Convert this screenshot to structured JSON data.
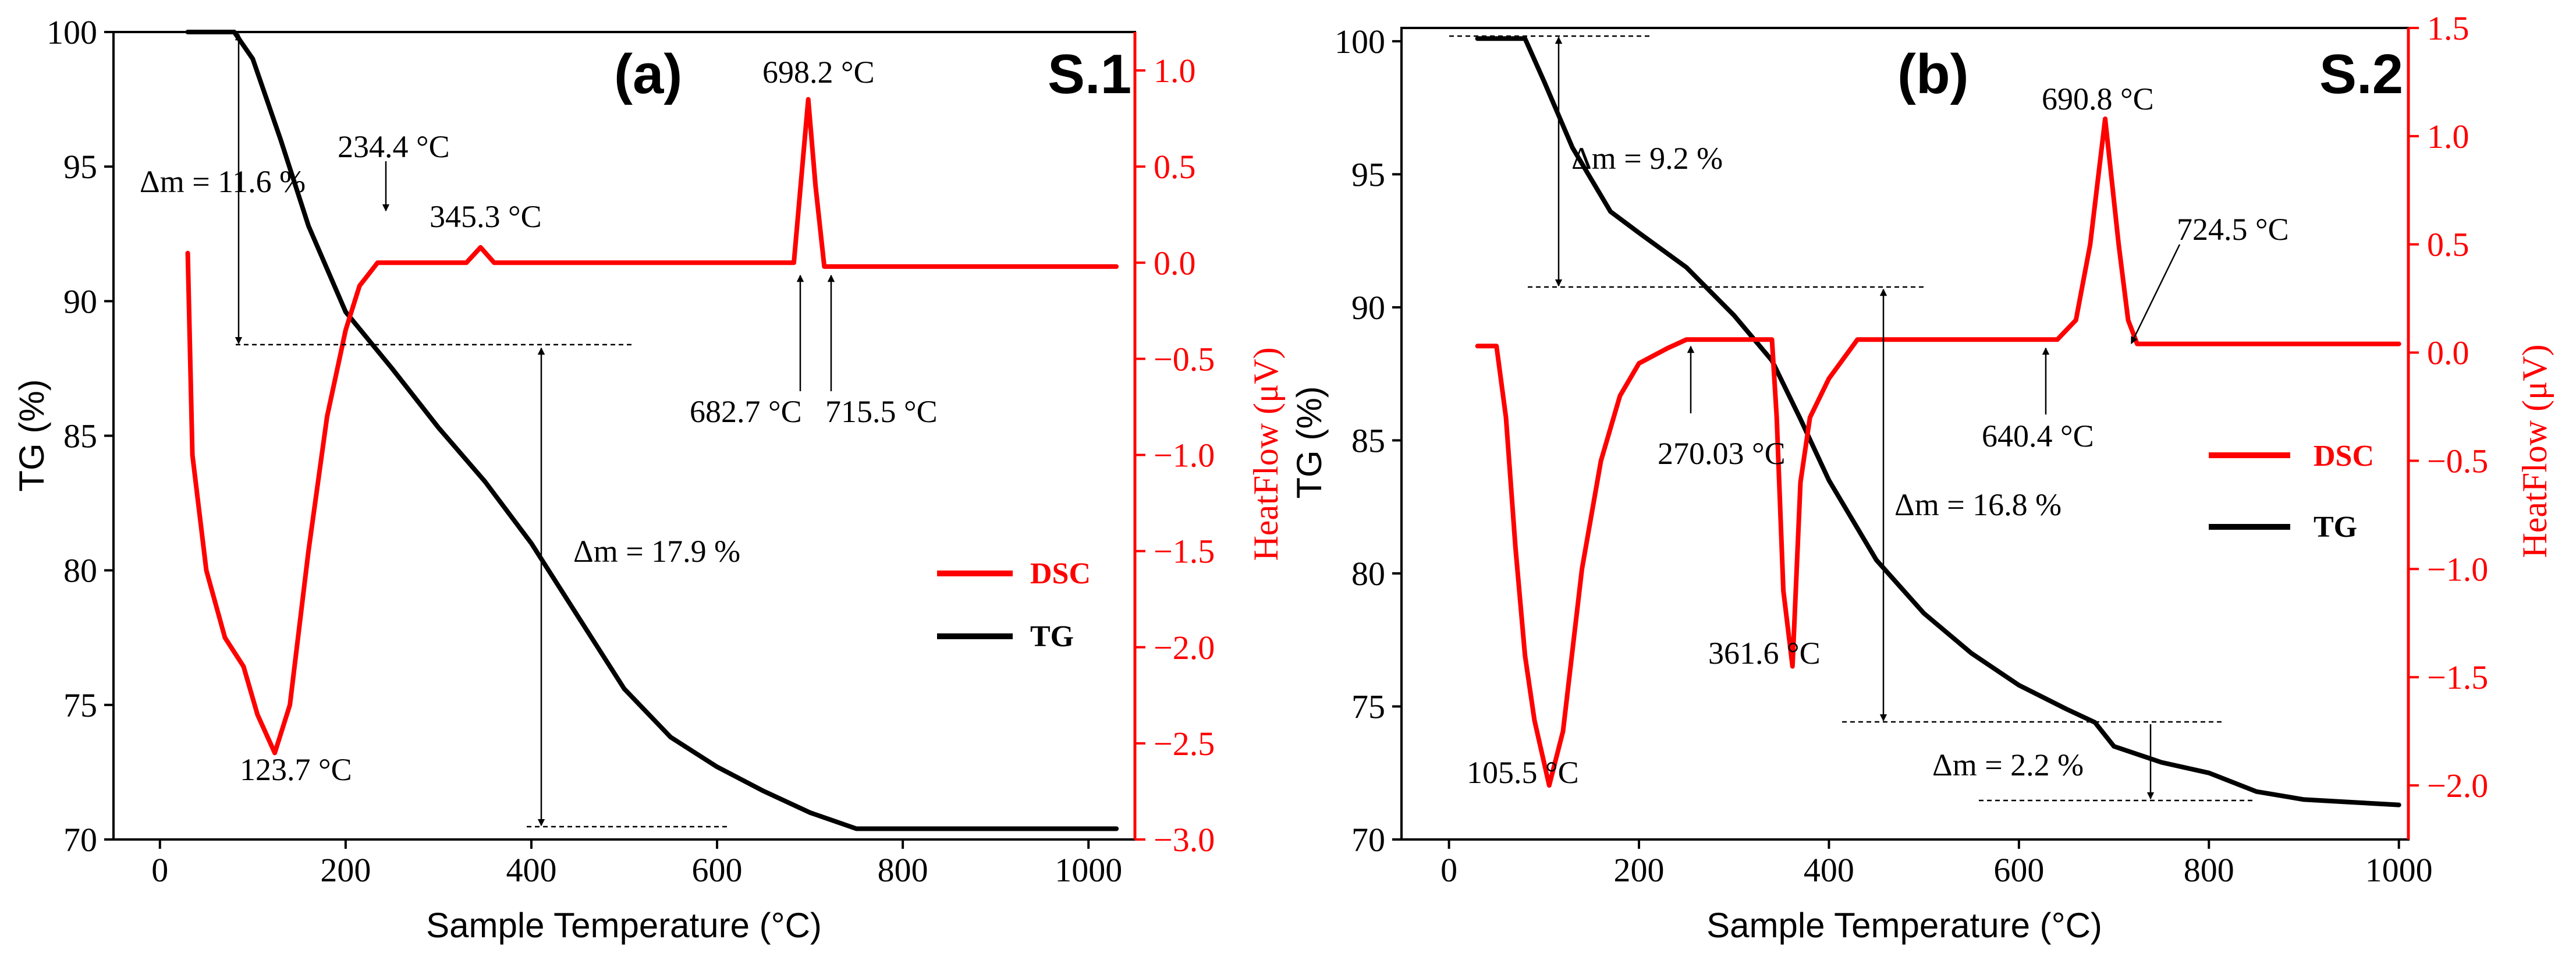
{
  "chart_data": [
    {
      "type": "line",
      "panel_label": "(a)",
      "sample_label": "S.1",
      "xlabel": "Sample Temperature (°C)",
      "ylabel": "TG  (%)",
      "y2label": "HeatFlow (μV)",
      "xlim": [
        -50,
        1050
      ],
      "ylim": [
        70,
        100
      ],
      "y2lim": [
        -3.0,
        1.2
      ],
      "xticks": [
        0,
        200,
        400,
        600,
        800,
        1000
      ],
      "yticks": [
        70,
        75,
        80,
        85,
        90,
        95,
        100
      ],
      "y2ticks": [
        -3.0,
        -2.5,
        -2.0,
        -1.5,
        -1.0,
        -0.5,
        0.0,
        0.5,
        1.0
      ],
      "xtick_labels": [
        "0",
        "200",
        "400",
        "600",
        "800",
        "1000"
      ],
      "ytick_labels": [
        "70",
        "75",
        "80",
        "85",
        "90",
        "95",
        "100"
      ],
      "y2tick_labels": [
        "−3.0",
        "−2.5",
        "−2.0",
        "−1.5",
        "−1.0",
        "−0.5",
        "0.0",
        "0.5",
        "1.0"
      ],
      "legend": [
        {
          "name": "DSC",
          "color": "#ff0000"
        },
        {
          "name": "TG",
          "color": "#000000"
        }
      ],
      "series": [
        {
          "name": "TG",
          "axis": "left",
          "color": "#000000",
          "x": [
            30,
            80,
            100,
            130,
            160,
            200,
            250,
            300,
            350,
            400,
            450,
            500,
            550,
            600,
            650,
            700,
            750,
            800,
            1030
          ],
          "y": [
            100,
            100,
            99,
            96,
            92.8,
            89.6,
            87.5,
            85.3,
            83.3,
            81.0,
            78.3,
            75.6,
            73.8,
            72.7,
            71.8,
            71.0,
            70.4,
            70.4,
            70.4
          ]
        },
        {
          "name": "DSC",
          "axis": "right",
          "color": "#ff0000",
          "x": [
            30,
            35,
            50,
            70,
            90,
            105,
            123.7,
            140,
            160,
            180,
            200,
            215,
            234.4,
            260,
            300,
            330,
            345.3,
            360,
            400,
            500,
            600,
            682.7,
            690,
            698.2,
            706,
            715.5,
            720,
            800,
            1030
          ],
          "y": [
            0.05,
            -1.0,
            -1.6,
            -1.95,
            -2.1,
            -2.35,
            -2.55,
            -2.3,
            -1.5,
            -0.8,
            -0.35,
            -0.12,
            0.0,
            0.0,
            0.0,
            0.0,
            0.08,
            0.0,
            0.0,
            0.0,
            0.0,
            0.0,
            0.4,
            0.85,
            0.4,
            -0.02,
            -0.02,
            -0.02,
            -0.02
          ]
        }
      ],
      "annotations": [
        {
          "text": "Δm = 11.6 %"
        },
        {
          "text": "234.4 °C"
        },
        {
          "text": "345.3 °C"
        },
        {
          "text": "698.2 °C"
        },
        {
          "text": "682.7 °C"
        },
        {
          "text": "715.5 °C"
        },
        {
          "text": "Δm = 17.9 %"
        },
        {
          "text": "123.7 °C"
        }
      ]
    },
    {
      "type": "line",
      "panel_label": "(b)",
      "sample_label": "S.2",
      "xlabel": "Sample Temperature (°C)",
      "ylabel": "TG  (%)",
      "y2label": "HeatFlow (μV)",
      "xlim": [
        -50,
        1010
      ],
      "ylim": [
        70,
        100.5
      ],
      "y2lim": [
        -2.25,
        1.5
      ],
      "xticks": [
        0,
        200,
        400,
        600,
        800,
        1000
      ],
      "yticks": [
        70,
        75,
        80,
        85,
        90,
        95,
        100
      ],
      "y2ticks": [
        -2.0,
        -1.5,
        -1.0,
        -0.5,
        0.0,
        0.5,
        1.0,
        1.5
      ],
      "xtick_labels": [
        "0",
        "200",
        "400",
        "600",
        "800",
        "1000"
      ],
      "ytick_labels": [
        "70",
        "75",
        "80",
        "85",
        "90",
        "95",
        "100"
      ],
      "y2tick_labels": [
        "−2.0",
        "−1.5",
        "−1.0",
        "−0.5",
        "0.0",
        "0.5",
        "1.0",
        "1.5"
      ],
      "legend": [
        {
          "name": "DSC",
          "color": "#ff0000"
        },
        {
          "name": "TG",
          "color": "#000000"
        }
      ],
      "series": [
        {
          "name": "TG",
          "axis": "left",
          "color": "#000000",
          "x": [
            30,
            80,
            100,
            130,
            170,
            200,
            250,
            300,
            340,
            370,
            400,
            450,
            500,
            550,
            600,
            650,
            680,
            700,
            750,
            800,
            850,
            900,
            950,
            1000
          ],
          "y": [
            100.1,
            100.1,
            98.5,
            96,
            93.6,
            92.8,
            91.5,
            89.7,
            88.0,
            85.8,
            83.5,
            80.5,
            78.5,
            77.0,
            75.8,
            74.9,
            74.4,
            73.5,
            72.9,
            72.5,
            71.8,
            71.5,
            71.4,
            71.3
          ]
        },
        {
          "name": "DSC",
          "axis": "right",
          "color": "#ff0000",
          "x": [
            30,
            50,
            60,
            70,
            80,
            90,
            105.5,
            120,
            140,
            160,
            180,
            200,
            230,
            250,
            270.03,
            300,
            340,
            345,
            352,
            361.6,
            370,
            380,
            400,
            430,
            500,
            600,
            640.4,
            660,
            675,
            690.8,
            705,
            715,
            724.5,
            800,
            1000
          ],
          "y": [
            0.03,
            0.03,
            -0.3,
            -0.9,
            -1.4,
            -1.7,
            -2.0,
            -1.75,
            -1.0,
            -0.5,
            -0.2,
            -0.05,
            0.02,
            0.06,
            0.06,
            0.06,
            0.06,
            -0.3,
            -1.1,
            -1.45,
            -0.6,
            -0.3,
            -0.12,
            0.06,
            0.06,
            0.06,
            0.06,
            0.15,
            0.5,
            1.08,
            0.5,
            0.15,
            0.04,
            0.04,
            0.04
          ]
        }
      ],
      "annotations": [
        {
          "text": "Δm = 9.2 %"
        },
        {
          "text": "690.8 °C"
        },
        {
          "text": "724.5 °C"
        },
        {
          "text": "640.4 °C"
        },
        {
          "text": "270.03 °C"
        },
        {
          "text": "Δm = 16.8 %"
        },
        {
          "text": "361.6 °C"
        },
        {
          "text": "105.5 °C"
        },
        {
          "text": "Δm = 2.2 %"
        }
      ]
    }
  ]
}
